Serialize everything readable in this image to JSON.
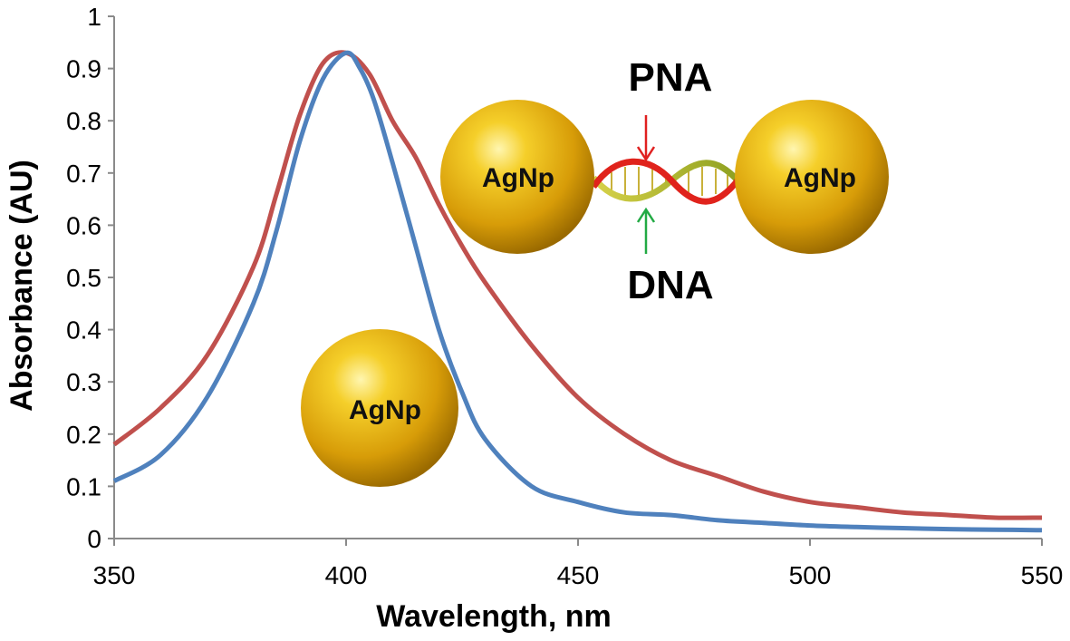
{
  "chart_data": {
    "type": "line",
    "xlabel": "Wavelength, nm",
    "ylabel": "Absorbance (AU)",
    "xlim": [
      350,
      550
    ],
    "ylim": [
      0,
      1
    ],
    "x_ticks": [
      "350",
      "400",
      "450",
      "500",
      "550"
    ],
    "y_ticks": [
      "0",
      "0.1",
      "0.2",
      "0.3",
      "0.4",
      "0.5",
      "0.6",
      "0.7",
      "0.8",
      "0.9",
      "1"
    ],
    "grid": false,
    "legend": "none",
    "series": [
      {
        "color": "#c0504d",
        "x": [
          350,
          360,
          370,
          380,
          385,
          390,
          395,
          400,
          405,
          410,
          415,
          420,
          425,
          430,
          440,
          450,
          460,
          470,
          480,
          490,
          500,
          510,
          520,
          530,
          540,
          550
        ],
        "y": [
          0.18,
          0.25,
          0.35,
          0.52,
          0.66,
          0.81,
          0.91,
          0.93,
          0.89,
          0.8,
          0.73,
          0.64,
          0.56,
          0.49,
          0.37,
          0.27,
          0.2,
          0.15,
          0.12,
          0.09,
          0.07,
          0.06,
          0.05,
          0.045,
          0.04,
          0.04
        ]
      },
      {
        "color": "#4f81bd",
        "x": [
          350,
          360,
          370,
          380,
          385,
          390,
          395,
          400,
          403,
          406,
          410,
          415,
          420,
          425,
          430,
          440,
          450,
          460,
          470,
          480,
          490,
          500,
          510,
          520,
          530,
          540,
          550
        ],
        "y": [
          0.11,
          0.16,
          0.27,
          0.45,
          0.59,
          0.76,
          0.88,
          0.93,
          0.9,
          0.84,
          0.72,
          0.56,
          0.4,
          0.28,
          0.19,
          0.1,
          0.07,
          0.05,
          0.045,
          0.035,
          0.03,
          0.025,
          0.022,
          0.02,
          0.018,
          0.017,
          0.016
        ]
      }
    ],
    "annotations": {
      "free_particle": "AgNp",
      "pair_left": "AgNp",
      "pair_right": "AgNp",
      "top_strand": "PNA",
      "bottom_strand": "DNA"
    },
    "colors": {
      "particle": "#f2c21b",
      "pna_arrow": "#e02020",
      "dna_arrow": "#22aa44"
    }
  }
}
